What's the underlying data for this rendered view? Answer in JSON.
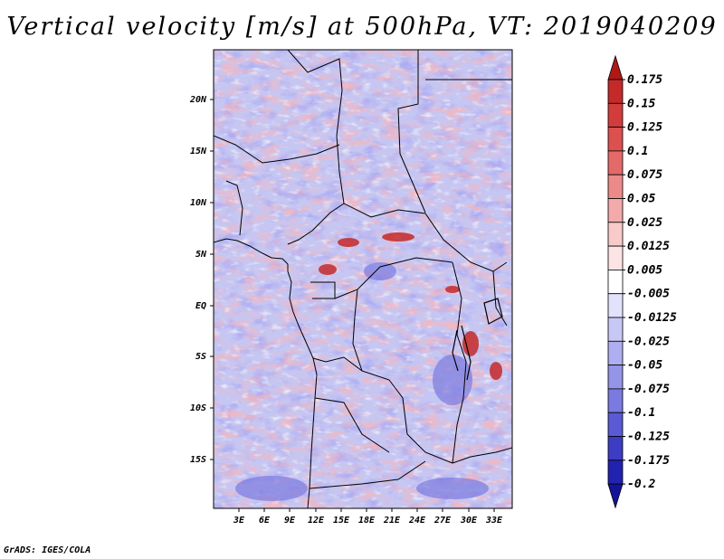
{
  "title": "Vertical velocity [m/s] at 500hPa, VT: 2019040209",
  "credit": "GrADS: IGES/COLA",
  "map": {
    "region": "Central Africa",
    "lat_ticks": [
      "20N",
      "15N",
      "10N",
      "5N",
      "EQ",
      "5S",
      "10S",
      "15S"
    ],
    "lon_ticks": [
      "3E",
      "6E",
      "9E",
      "12E",
      "15E",
      "18E",
      "21E",
      "24E",
      "27E",
      "30E",
      "33E"
    ]
  },
  "colorbar": {
    "labels": [
      "0.175",
      "0.15",
      "0.125",
      "0.1",
      "0.075",
      "0.05",
      "0.025",
      "0.0125",
      "0.005",
      "-0.005",
      "-0.0125",
      "-0.025",
      "-0.05",
      "-0.075",
      "-0.1",
      "-0.125",
      "-0.175",
      "-0.2"
    ],
    "colors": [
      "#b01818",
      "#c42a2a",
      "#d23c3c",
      "#dc5050",
      "#e46a6a",
      "#ec8a8a",
      "#f2aaaa",
      "#f8caca",
      "#fce4e4",
      "#ffffff",
      "#e2e2fc",
      "#c8c8f6",
      "#aeaef0",
      "#9494e8",
      "#7a7ae0",
      "#5a5ad4",
      "#3c3cc4",
      "#2222b0",
      "#14149a"
    ]
  }
}
